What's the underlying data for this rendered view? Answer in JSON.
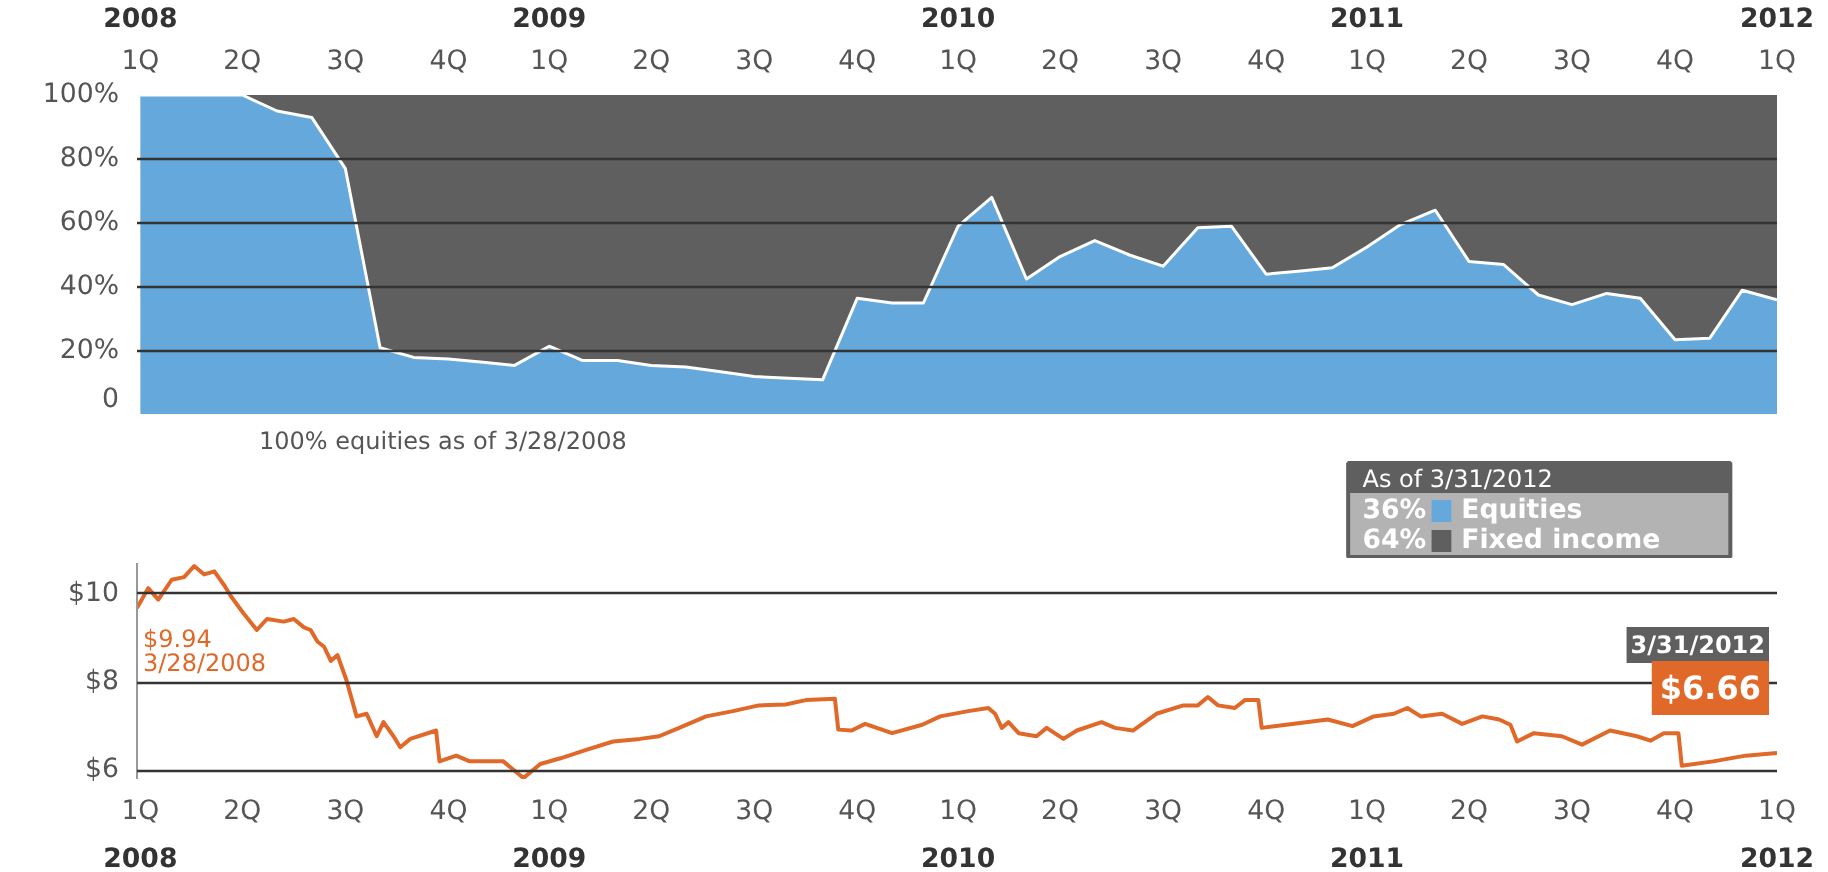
{
  "chart_data": [
    {
      "type": "area",
      "stacked": true,
      "x": [
        "2008-03-31",
        "2008-04-30",
        "2008-05-31",
        "2008-06-30",
        "2008-07-31",
        "2008-08-31",
        "2008-09-30",
        "2008-10-31",
        "2008-11-30",
        "2008-12-31",
        "2009-01-31",
        "2009-02-28",
        "2009-03-31",
        "2009-04-30",
        "2009-05-31",
        "2009-06-30",
        "2009-07-31",
        "2009-08-31",
        "2009-09-30",
        "2009-10-31",
        "2009-11-30",
        "2009-12-31",
        "2010-01-31",
        "2010-02-28",
        "2010-03-31",
        "2010-04-30",
        "2010-05-31",
        "2010-06-30",
        "2010-07-31",
        "2010-08-31",
        "2010-09-30",
        "2010-10-31",
        "2010-11-30",
        "2010-12-31",
        "2011-01-31",
        "2011-02-28",
        "2011-03-31",
        "2011-04-30",
        "2011-05-31",
        "2011-06-30",
        "2011-07-31",
        "2011-08-31",
        "2011-09-30",
        "2011-10-31",
        "2011-11-30",
        "2011-12-31",
        "2012-01-31",
        "2012-02-29",
        "2012-03-31"
      ],
      "series": [
        {
          "name": "Equities",
          "color": "#65a8dc",
          "values": [
            100,
            100,
            100,
            100,
            95,
            93,
            77,
            21,
            18,
            17.5,
            16.5,
            15.5,
            21.5,
            17,
            17,
            15.5,
            15,
            13.5,
            12,
            11.5,
            11,
            36.5,
            35,
            35,
            59,
            68,
            42.5,
            49.5,
            54.5,
            50,
            46.5,
            58.5,
            59,
            44,
            45,
            46,
            52.5,
            59.5,
            64,
            48,
            47,
            37.5,
            34.5,
            38,
            36.5,
            23.5,
            24,
            39,
            36
          ]
        },
        {
          "name": "Fixed income",
          "color": "#5f5f5f",
          "values": [
            0,
            0,
            0,
            0,
            5,
            7,
            23,
            79,
            82,
            82.5,
            83.5,
            84.5,
            78.5,
            83,
            83,
            84.5,
            85,
            86.5,
            88,
            88.5,
            89,
            63.5,
            65,
            65,
            41,
            32,
            57.5,
            50.5,
            45.5,
            50,
            53.5,
            41.5,
            41,
            56,
            55,
            54,
            47.5,
            40.5,
            36,
            52,
            53,
            62.5,
            65.5,
            62,
            63.5,
            76.5,
            76,
            61,
            64
          ]
        }
      ],
      "xlim": [
        "2008-03-28",
        "2012-03-31"
      ],
      "xticks": [
        {
          "value": "2008-03-31",
          "label": "1Q"
        },
        {
          "value": "2008-06-30",
          "label": "2Q"
        },
        {
          "value": "2008-09-30",
          "label": "3Q"
        },
        {
          "value": "2008-12-31",
          "label": "4Q"
        },
        {
          "value": "2009-03-31",
          "label": "1Q"
        },
        {
          "value": "2009-06-30",
          "label": "2Q"
        },
        {
          "value": "2009-09-30",
          "label": "3Q"
        },
        {
          "value": "2009-12-31",
          "label": "4Q"
        },
        {
          "value": "2010-03-31",
          "label": "1Q"
        },
        {
          "value": "2010-06-30",
          "label": "2Q"
        },
        {
          "value": "2010-09-30",
          "label": "3Q"
        },
        {
          "value": "2010-12-31",
          "label": "4Q"
        },
        {
          "value": "2011-03-31",
          "label": "1Q"
        },
        {
          "value": "2011-06-30",
          "label": "2Q"
        },
        {
          "value": "2011-09-30",
          "label": "3Q"
        },
        {
          "value": "2011-12-31",
          "label": "4Q"
        },
        {
          "value": "2012-03-31",
          "label": "1Q"
        }
      ],
      "x2lim": [
        "2008-03-28",
        "2012-03-31"
      ],
      "x2ticks": [
        {
          "value": "2008-03-31",
          "label": "2008"
        },
        {
          "value": "2009-03-31",
          "label": "2009"
        },
        {
          "value": "2010-03-31",
          "label": "2010"
        },
        {
          "value": "2011-03-31",
          "label": "2011"
        },
        {
          "value": "2012-03-31",
          "label": "2012"
        }
      ],
      "ylim": [
        0,
        100
      ],
      "yticks": [
        0,
        {
          "value": 20,
          "label": "20%"
        },
        {
          "value": 40,
          "label": "40%"
        },
        {
          "value": 60,
          "label": "60%"
        },
        {
          "value": 80,
          "label": "80%"
        },
        {
          "value": 100,
          "label": "100%"
        }
      ],
      "grid": "y",
      "legend": "bottom right",
      "legend_title": "As of 3/31/2012",
      "annotations": [
        "100% equities as of 3/28/2008",
        "36%",
        "64%"
      ]
    },
    {
      "type": "line",
      "x": [
        "2008-03-28",
        "2008-04-07",
        "2008-04-16",
        "2008-04-28",
        "2008-05-09",
        "2008-05-18",
        "2008-05-27",
        "2008-06-05",
        "2008-06-14",
        "2008-06-20",
        "2008-07-01",
        "2008-07-13",
        "2008-07-22",
        "2008-08-06",
        "2008-08-15",
        "2008-08-24",
        "2008-08-30",
        "2008-09-05",
        "2008-09-11",
        "2008-09-17",
        "2008-09-23",
        "2008-10-01",
        "2008-10-10",
        "2008-10-19",
        "2008-10-28",
        "2008-11-03",
        "2008-11-12",
        "2008-11-18",
        "2008-11-27",
        "2008-12-20",
        "2008-12-23",
        "2009-01-07",
        "2009-01-19",
        "2009-02-18",
        "2009-03-08",
        "2009-03-23",
        "2009-04-10",
        "2009-05-03",
        "2009-05-27",
        "2009-06-20",
        "2009-07-07",
        "2009-07-25",
        "2009-08-18",
        "2009-09-11",
        "2009-10-04",
        "2009-10-28",
        "2009-11-15",
        "2009-12-11",
        "2009-12-14",
        "2009-12-26",
        "2010-01-07",
        "2010-01-31",
        "2010-02-27",
        "2010-03-15",
        "2010-04-09",
        "2010-04-27",
        "2010-05-03",
        "2010-05-09",
        "2010-05-15",
        "2010-05-24",
        "2010-06-09",
        "2010-06-18",
        "2010-07-03",
        "2010-07-15",
        "2010-08-06",
        "2010-08-18",
        "2010-09-03",
        "2010-09-24",
        "2010-10-18",
        "2010-10-31",
        "2010-11-09",
        "2010-11-18",
        "2010-12-03",
        "2010-12-12",
        "2010-12-24",
        "2010-12-27",
        "2011-01-18",
        "2011-02-24",
        "2011-03-18",
        "2011-04-06",
        "2011-04-24",
        "2011-05-06",
        "2011-05-18",
        "2011-06-06",
        "2011-06-24",
        "2011-07-12",
        "2011-07-27",
        "2011-08-06",
        "2011-08-12",
        "2011-08-27",
        "2011-09-21",
        "2011-10-09",
        "2011-11-03",
        "2011-11-27",
        "2011-12-09",
        "2011-12-21",
        "2012-01-03",
        "2012-01-06",
        "2012-02-03",
        "2012-03-03",
        "2012-03-31"
      ],
      "series": [
        {
          "color": "#e0692a",
          "values": [
            9.68,
            10.13,
            9.87,
            10.32,
            10.38,
            10.63,
            10.44,
            10.51,
            10.19,
            9.94,
            9.56,
            9.18,
            9.43,
            9.37,
            9.43,
            9.24,
            9.18,
            8.92,
            8.8,
            8.48,
            8.61,
            8.04,
            7.22,
            7.28,
            6.77,
            7.09,
            6.77,
            6.52,
            6.71,
            6.9,
            6.2,
            6.33,
            6.2,
            6.2,
            5.82,
            6.14,
            6.27,
            6.46,
            6.65,
            6.71,
            6.77,
            6.96,
            7.22,
            7.34,
            7.47,
            7.49,
            7.59,
            7.62,
            6.92,
            6.9,
            7.05,
            6.84,
            7.03,
            7.22,
            7.34,
            7.41,
            7.28,
            6.96,
            7.09,
            6.84,
            6.77,
            6.96,
            6.71,
            6.9,
            7.09,
            6.96,
            6.9,
            7.28,
            7.47,
            7.47,
            7.66,
            7.47,
            7.41,
            7.59,
            7.59,
            6.96,
            7.03,
            7.15,
            7.0,
            7.22,
            7.28,
            7.41,
            7.22,
            7.28,
            7.05,
            7.22,
            7.15,
            7.03,
            6.65,
            6.84,
            6.77,
            6.58,
            6.9,
            6.77,
            6.67,
            6.84,
            6.84,
            6.1,
            6.2,
            6.33,
            6.39
          ]
        }
      ],
      "xlim": [
        "2008-03-28",
        "2012-03-31"
      ],
      "xticks": [
        {
          "value": "2008-03-31",
          "label": "1Q"
        },
        {
          "value": "2008-06-30",
          "label": "2Q"
        },
        {
          "value": "2008-09-30",
          "label": "3Q"
        },
        {
          "value": "2008-12-31",
          "label": "4Q"
        },
        {
          "value": "2009-03-31",
          "label": "1Q"
        },
        {
          "value": "2009-06-30",
          "label": "2Q"
        },
        {
          "value": "2009-09-30",
          "label": "3Q"
        },
        {
          "value": "2009-12-31",
          "label": "4Q"
        },
        {
          "value": "2010-03-31",
          "label": "1Q"
        },
        {
          "value": "2010-06-30",
          "label": "2Q"
        },
        {
          "value": "2010-09-30",
          "label": "3Q"
        },
        {
          "value": "2010-12-31",
          "label": "4Q"
        },
        {
          "value": "2011-03-31",
          "label": "1Q"
        },
        {
          "value": "2011-06-30",
          "label": "2Q"
        },
        {
          "value": "2011-09-30",
          "label": "3Q"
        },
        {
          "value": "2011-12-31",
          "label": "4Q"
        },
        {
          "value": "2012-03-31",
          "label": "1Q"
        }
      ],
      "x2lim": [
        "2008-03-28",
        "2012-03-31"
      ],
      "x2ticks": [
        {
          "value": "2008-03-31",
          "label": "2008"
        },
        {
          "value": "2009-03-31",
          "label": "2009"
        },
        {
          "value": "2010-03-31",
          "label": "2010"
        },
        {
          "value": "2011-03-31",
          "label": "2011"
        },
        {
          "value": "2012-03-31",
          "label": "2012"
        }
      ],
      "ylim": [
        5.8,
        10.7
      ],
      "yticks": [
        {
          "value": 6,
          "label": "$6"
        },
        {
          "value": 8,
          "label": "$8"
        },
        {
          "value": 10,
          "label": "$10"
        }
      ],
      "grid": "y",
      "line_style": "solid",
      "annotations": [
        "$9.94",
        "3/28/2008",
        "3/31/2012",
        "$6.66"
      ]
    }
  ]
}
